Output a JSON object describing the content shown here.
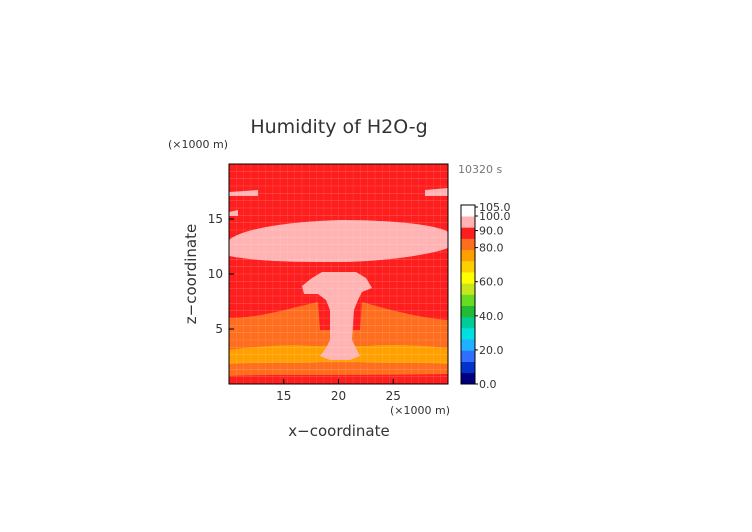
{
  "chart_data": {
    "type": "heatmap",
    "title": "Humidity of H2O-g",
    "time_label": "10320 s",
    "xlabel": "x−coordinate",
    "ylabel": "z−coordinate",
    "x_unit": "(×1000 m)",
    "y_unit": "(×1000 m)",
    "xlim": [
      10,
      30
    ],
    "ylim": [
      0,
      20
    ],
    "x_ticks": [
      15,
      20,
      25
    ],
    "y_ticks": [
      5,
      10,
      15
    ],
    "colorbar": {
      "levels": [
        0.0,
        20.0,
        40.0,
        60.0,
        80.0,
        90.0,
        100.0,
        105.0
      ],
      "labels": [
        "0.0",
        "20.0",
        "40.0",
        "60.0",
        "80.0",
        "90.0",
        "100.0",
        "105.0"
      ],
      "colors": [
        "#00007f",
        "#0033cc",
        "#2f6fff",
        "#1fb0ff",
        "#00e0e0",
        "#00cc99",
        "#22bb33",
        "#66dd22",
        "#c8e61e",
        "#ffff00",
        "#ffd000",
        "#ffa000",
        "#ff6e1e",
        "#ff1e1e",
        "#ffb3b3",
        "#ffffff"
      ]
    },
    "regions": [
      {
        "name": "background",
        "value": 97,
        "color": "#ff1e1e"
      },
      {
        "name": "upper-saturated-layer",
        "z_range": [
          11,
          15
        ],
        "value": 103,
        "color": "#ffb3b3"
      },
      {
        "name": "convective-plume",
        "x_range": [
          18,
          22
        ],
        "z_range": [
          3,
          10
        ],
        "value": 103,
        "color": "#ffb3b3"
      },
      {
        "name": "low-level-band",
        "z_range": [
          0,
          6
        ],
        "value": 85,
        "color": "#ff6e1e"
      },
      {
        "name": "lowest-band",
        "z_range": [
          0,
          3
        ],
        "value": 80,
        "color": "#ffa000"
      }
    ],
    "grid": true
  }
}
